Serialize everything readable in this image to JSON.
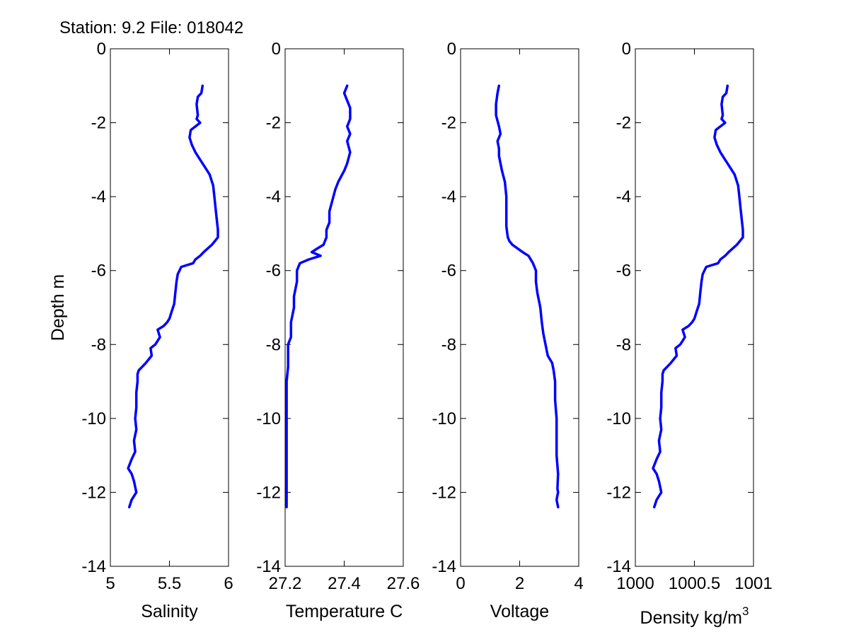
{
  "figure": {
    "title": "Station: 9.2 File: 018042",
    "line_color": "#0000ff"
  },
  "chart_data": [
    {
      "type": "line",
      "xlabel": "Salinity",
      "ylabel": "Depth m",
      "xlim": [
        5,
        6
      ],
      "ylim": [
        -14,
        0
      ],
      "xticks": [
        "5",
        "5.5",
        "6"
      ],
      "yticks": [
        "0",
        "-2",
        "-4",
        "-6",
        "-8",
        "-10",
        "-12",
        "-14"
      ],
      "grid": false,
      "series": [
        {
          "x": [
            5.78,
            5.77,
            5.74,
            5.73,
            5.74,
            5.73,
            5.76,
            5.68,
            5.67,
            5.69,
            5.72,
            5.76,
            5.8,
            5.84,
            5.87,
            5.88,
            5.89,
            5.9,
            5.91,
            5.91,
            5.86,
            5.79,
            5.76,
            5.72,
            5.7,
            5.6,
            5.57,
            5.56,
            5.55,
            5.54,
            5.52,
            5.5,
            5.48,
            5.45,
            5.4,
            5.42,
            5.38,
            5.34,
            5.35,
            5.3,
            5.27,
            5.24,
            5.23,
            5.23,
            5.22,
            5.22,
            5.21,
            5.22,
            5.2,
            5.21,
            5.18,
            5.15,
            5.18,
            5.2,
            5.22,
            5.18,
            5.16
          ],
          "y": [
            -1.0,
            -1.2,
            -1.3,
            -1.5,
            -1.8,
            -1.9,
            -2.0,
            -2.2,
            -2.4,
            -2.6,
            -2.8,
            -3.0,
            -3.2,
            -3.4,
            -3.7,
            -4.0,
            -4.3,
            -4.6,
            -4.9,
            -5.1,
            -5.3,
            -5.5,
            -5.6,
            -5.7,
            -5.8,
            -5.9,
            -6.1,
            -6.3,
            -6.6,
            -6.9,
            -7.1,
            -7.3,
            -7.4,
            -7.5,
            -7.6,
            -7.8,
            -8.0,
            -8.1,
            -8.3,
            -8.5,
            -8.6,
            -8.7,
            -8.8,
            -9.0,
            -9.3,
            -9.7,
            -10.0,
            -10.3,
            -10.6,
            -10.9,
            -11.1,
            -11.35,
            -11.5,
            -11.7,
            -12.0,
            -12.2,
            -12.4
          ]
        }
      ]
    },
    {
      "type": "line",
      "xlabel": "Temperature C",
      "ylabel": "",
      "xlim": [
        27.2,
        27.6
      ],
      "ylim": [
        -14,
        0
      ],
      "xticks": [
        "27.2",
        "27.4",
        "27.6"
      ],
      "yticks": [
        "0",
        "-2",
        "-4",
        "-6",
        "-8",
        "-10",
        "-12",
        "-14"
      ],
      "grid": false,
      "series": [
        {
          "x": [
            27.41,
            27.4,
            27.41,
            27.42,
            27.42,
            27.41,
            27.42,
            27.41,
            27.42,
            27.41,
            27.4,
            27.38,
            27.37,
            27.36,
            27.35,
            27.35,
            27.34,
            27.34,
            27.33,
            27.31,
            27.29,
            27.32,
            27.28,
            27.25,
            27.24,
            27.24,
            27.23,
            27.23,
            27.22,
            27.22,
            27.21,
            27.21,
            27.21,
            27.205,
            27.205,
            27.205,
            27.205,
            27.205,
            27.205,
            27.205,
            27.205
          ],
          "y": [
            -1.0,
            -1.2,
            -1.4,
            -1.6,
            -1.9,
            -2.1,
            -2.3,
            -2.5,
            -2.8,
            -3.1,
            -3.3,
            -3.6,
            -3.8,
            -4.1,
            -4.4,
            -4.7,
            -4.9,
            -5.1,
            -5.3,
            -5.4,
            -5.5,
            -5.6,
            -5.7,
            -5.8,
            -6.0,
            -6.3,
            -6.7,
            -7.0,
            -7.4,
            -7.8,
            -8.0,
            -8.3,
            -8.6,
            -9.0,
            -9.5,
            -10.0,
            -10.5,
            -11.0,
            -11.5,
            -12.0,
            -12.4
          ]
        }
      ]
    },
    {
      "type": "line",
      "xlabel": "Voltage",
      "ylabel": "",
      "xlim": [
        0,
        4
      ],
      "ylim": [
        -14,
        0
      ],
      "xticks": [
        "0",
        "2",
        "4"
      ],
      "yticks": [
        "0",
        "-2",
        "-4",
        "-6",
        "-8",
        "-10",
        "-12",
        "-14"
      ],
      "grid": false,
      "series": [
        {
          "x": [
            1.3,
            1.25,
            1.2,
            1.2,
            1.3,
            1.35,
            1.25,
            1.3,
            1.3,
            1.35,
            1.4,
            1.5,
            1.55,
            1.55,
            1.55,
            1.58,
            1.6,
            1.65,
            1.75,
            2.1,
            2.3,
            2.45,
            2.55,
            2.55,
            2.6,
            2.7,
            2.75,
            2.8,
            2.85,
            2.9,
            2.95,
            3.1,
            3.15,
            3.2,
            3.2,
            3.25,
            3.25,
            3.25,
            3.3,
            3.28,
            3.3,
            3.25,
            3.3
          ],
          "y": [
            -1.0,
            -1.2,
            -1.5,
            -1.8,
            -2.1,
            -2.3,
            -2.5,
            -2.7,
            -2.9,
            -3.1,
            -3.3,
            -3.6,
            -4.0,
            -4.4,
            -4.8,
            -5.0,
            -5.1,
            -5.2,
            -5.3,
            -5.5,
            -5.6,
            -5.8,
            -6.0,
            -6.3,
            -6.6,
            -7.0,
            -7.4,
            -7.7,
            -7.9,
            -8.1,
            -8.3,
            -8.5,
            -8.7,
            -9.0,
            -9.5,
            -10.0,
            -10.5,
            -11.0,
            -11.5,
            -11.9,
            -12.0,
            -12.2,
            -12.4
          ]
        }
      ]
    },
    {
      "type": "line",
      "xlabel": "Density kg/m",
      "xlabel_superscript": "3",
      "ylabel": "",
      "xlim": [
        1000,
        1001
      ],
      "ylim": [
        -14,
        0
      ],
      "xticks": [
        "1000",
        "1000.5",
        "1001"
      ],
      "yticks": [
        "0",
        "-2",
        "-4",
        "-6",
        "-8",
        "-10",
        "-12",
        "-14"
      ],
      "grid": false,
      "series": [
        {
          "x": [
            1000.78,
            1000.77,
            1000.74,
            1000.73,
            1000.74,
            1000.73,
            1000.76,
            1000.68,
            1000.67,
            1000.69,
            1000.72,
            1000.76,
            1000.8,
            1000.84,
            1000.87,
            1000.88,
            1000.89,
            1000.9,
            1000.91,
            1000.91,
            1000.86,
            1000.79,
            1000.76,
            1000.72,
            1000.7,
            1000.6,
            1000.57,
            1000.56,
            1000.55,
            1000.54,
            1000.52,
            1000.5,
            1000.48,
            1000.45,
            1000.4,
            1000.42,
            1000.38,
            1000.34,
            1000.35,
            1000.3,
            1000.27,
            1000.24,
            1000.23,
            1000.23,
            1000.22,
            1000.22,
            1000.21,
            1000.22,
            1000.2,
            1000.21,
            1000.18,
            1000.15,
            1000.18,
            1000.2,
            1000.22,
            1000.18,
            1000.16
          ],
          "y": [
            -1.0,
            -1.2,
            -1.3,
            -1.5,
            -1.8,
            -1.9,
            -2.0,
            -2.2,
            -2.4,
            -2.6,
            -2.8,
            -3.0,
            -3.2,
            -3.4,
            -3.7,
            -4.0,
            -4.3,
            -4.6,
            -4.9,
            -5.1,
            -5.3,
            -5.5,
            -5.6,
            -5.7,
            -5.8,
            -5.9,
            -6.1,
            -6.3,
            -6.6,
            -6.9,
            -7.1,
            -7.3,
            -7.4,
            -7.5,
            -7.6,
            -7.8,
            -8.0,
            -8.1,
            -8.3,
            -8.5,
            -8.6,
            -8.7,
            -8.8,
            -9.0,
            -9.3,
            -9.7,
            -10.0,
            -10.3,
            -10.6,
            -10.9,
            -11.1,
            -11.35,
            -11.5,
            -11.7,
            -12.0,
            -12.2,
            -12.4
          ]
        }
      ]
    }
  ]
}
